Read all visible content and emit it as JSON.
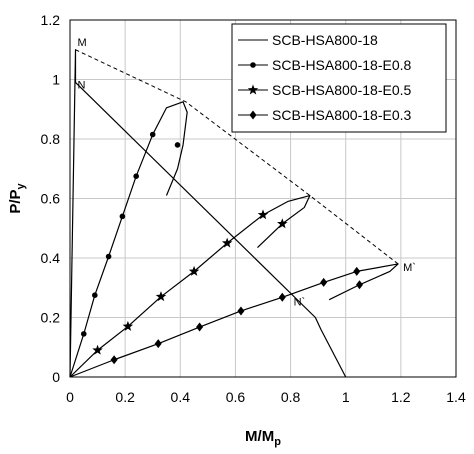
{
  "chart_data": {
    "type": "line",
    "xlabel": "M/M",
    "xlabel_sub": "p",
    "ylabel": "P/P",
    "ylabel_sub": "y",
    "xlim": [
      0,
      1.4
    ],
    "ylim": [
      0,
      1.2
    ],
    "xticks": [
      0,
      0.2,
      0.4,
      0.6,
      0.8,
      1,
      1.2,
      1.4
    ],
    "yticks": [
      0,
      0.2,
      0.4,
      0.6,
      0.8,
      1,
      1.2
    ],
    "xtick_labels": [
      "0",
      "0.2",
      "0.4",
      "0.6",
      "0.8",
      "1",
      "1.2",
      "1.4"
    ],
    "ytick_labels": [
      "0",
      "0.2",
      "0.4",
      "0.6",
      "0.8",
      "1",
      "1.2"
    ],
    "grid": true,
    "legend_position": "top-right",
    "series": [
      {
        "name": "SCB-HSA800-18",
        "marker": "none",
        "x": [
          0,
          0.02,
          0.02,
          0.02,
          0.89,
          0.91,
          1.0
        ],
        "y": [
          0,
          1.1,
          1.1,
          0.99,
          0.2,
          0.16,
          0
        ]
      },
      {
        "name": "SCB-HSA800-18-E0.8",
        "marker": "circle",
        "x": [
          0,
          0.05,
          0.09,
          0.14,
          0.19,
          0.24,
          0.3,
          0.35,
          0.41,
          0.425,
          0.41,
          0.39,
          0.35
        ],
        "y": [
          0,
          0.145,
          0.275,
          0.405,
          0.54,
          0.675,
          0.815,
          0.905,
          0.925,
          0.89,
          0.78,
          0.7,
          0.61
        ],
        "marker_x": [
          0.05,
          0.09,
          0.14,
          0.19,
          0.24,
          0.3,
          0.39
        ],
        "marker_y": [
          0.145,
          0.275,
          0.405,
          0.54,
          0.675,
          0.815,
          0.78
        ]
      },
      {
        "name": "SCB-HSA800-18-E0.5",
        "marker": "star",
        "x": [
          0,
          0.1,
          0.21,
          0.33,
          0.45,
          0.57,
          0.7,
          0.79,
          0.87,
          0.85,
          0.77,
          0.68
        ],
        "y": [
          0,
          0.09,
          0.17,
          0.27,
          0.355,
          0.45,
          0.545,
          0.59,
          0.61,
          0.57,
          0.515,
          0.435
        ],
        "marker_x": [
          0.1,
          0.21,
          0.33,
          0.45,
          0.57,
          0.7,
          0.77
        ],
        "marker_y": [
          0.09,
          0.17,
          0.27,
          0.355,
          0.45,
          0.545,
          0.515
        ]
      },
      {
        "name": "SCB-HSA800-18-E0.3",
        "marker": "diamond",
        "x": [
          0,
          0.16,
          0.32,
          0.47,
          0.62,
          0.77,
          0.92,
          1.04,
          1.19,
          1.16,
          1.05,
          0.94
        ],
        "y": [
          0,
          0.058,
          0.112,
          0.168,
          0.222,
          0.268,
          0.318,
          0.355,
          0.38,
          0.355,
          0.31,
          0.26
        ],
        "marker_x": [
          0.16,
          0.32,
          0.47,
          0.62,
          0.77,
          0.92,
          1.04,
          1.05
        ],
        "marker_y": [
          0.058,
          0.112,
          0.168,
          0.222,
          0.268,
          0.318,
          0.355,
          0.31
        ]
      }
    ],
    "envelope": {
      "style": "dashed",
      "x": [
        0.02,
        0.42,
        0.87,
        1.19
      ],
      "y": [
        1.1,
        0.925,
        0.61,
        0.38
      ]
    },
    "annotations": [
      {
        "text": "M",
        "x": 0.02,
        "y": 1.1
      },
      {
        "text": "N",
        "x": 0.02,
        "y": 0.99
      },
      {
        "text": "M`",
        "x": 1.19,
        "y": 0.38
      },
      {
        "text": "N`",
        "x": 0.8,
        "y": 0.28
      }
    ]
  }
}
